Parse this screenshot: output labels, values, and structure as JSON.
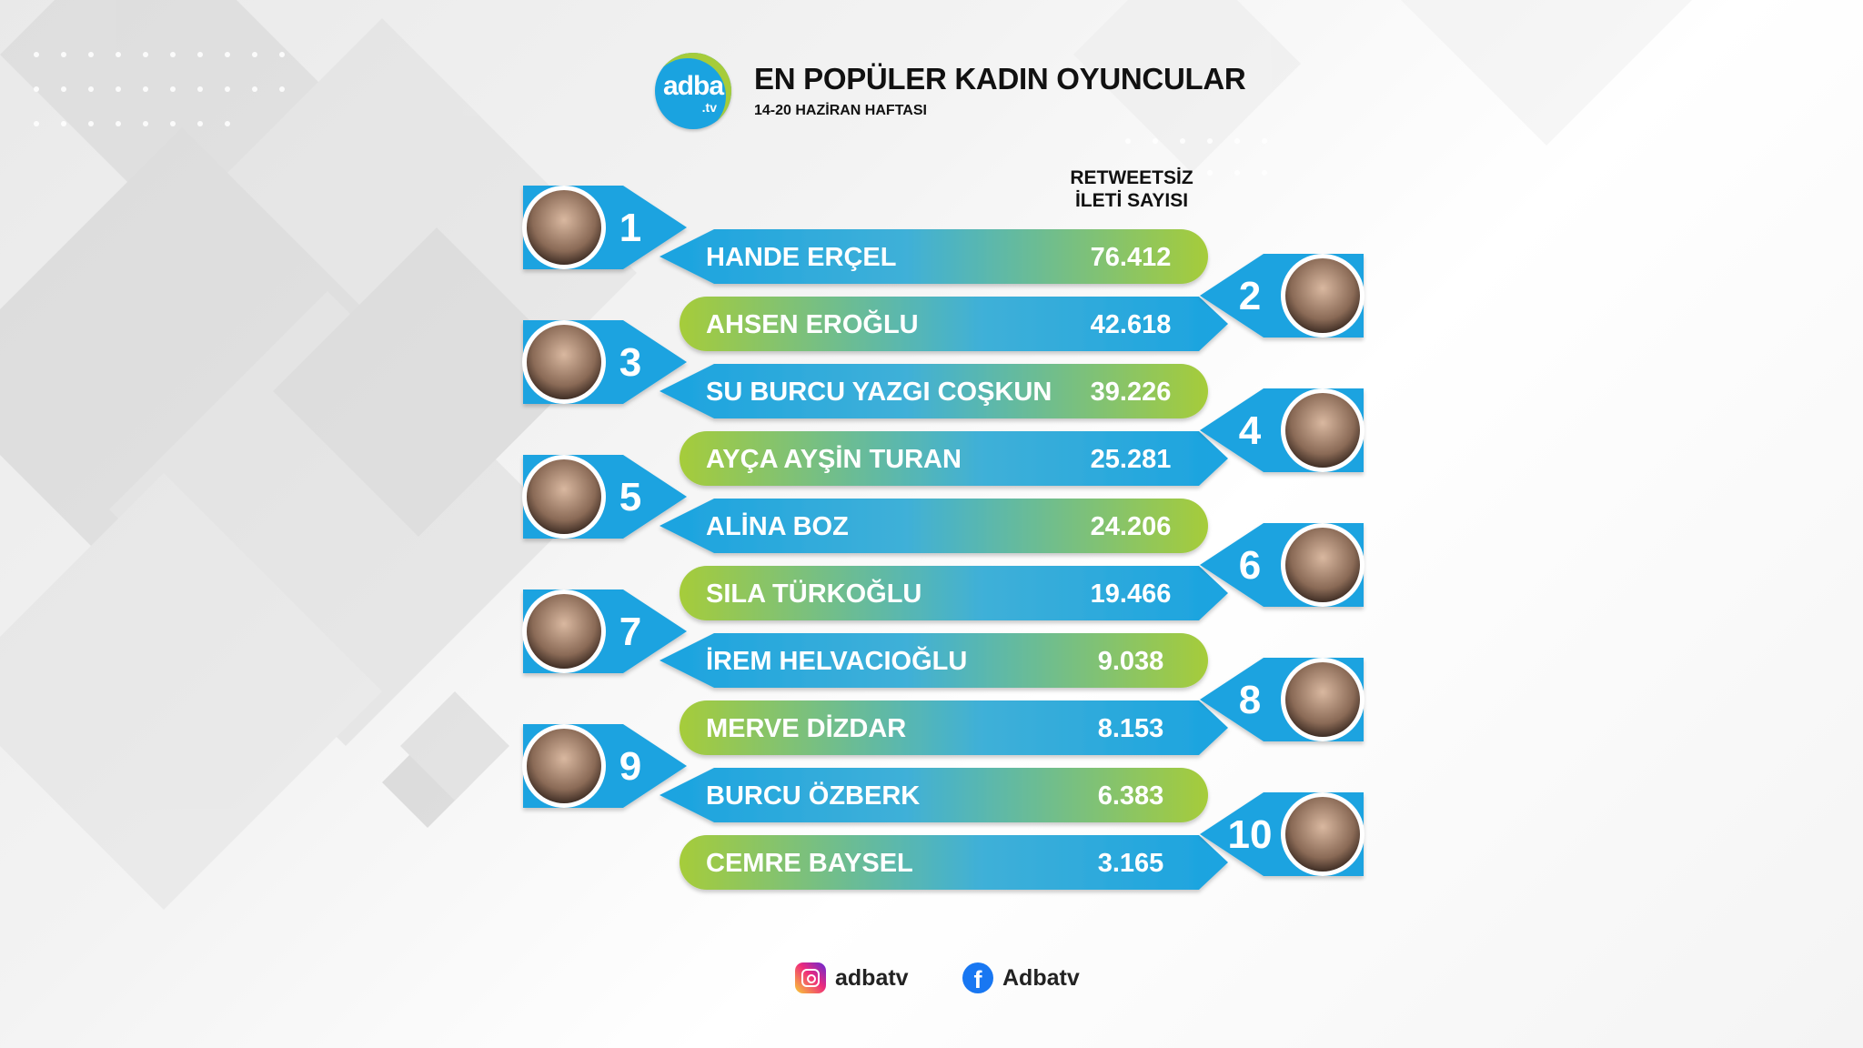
{
  "logo": {
    "main": "adba",
    "suffix": ".tv"
  },
  "header": {
    "title": "EN POPÜLER KADIN OYUNCULAR",
    "subtitle": "14-20 HAZİRAN HAFTASI"
  },
  "column_header": {
    "line1": "RETWEETSİZ",
    "line2": "İLETİ SAYISI"
  },
  "colors": {
    "blue": "#1aa3e0",
    "green": "#a6cc3a",
    "accent_dark": "#0f84c4"
  },
  "chart_data": {
    "type": "table",
    "title": "EN POPÜLER KADIN OYUNCULAR",
    "subtitle": "14-20 HAZİRAN HAFTASI",
    "columns": [
      "RETWEETSİZ İLETİ SAYISI"
    ],
    "rows": [
      {
        "rank": "1",
        "name": "HANDE ERÇEL",
        "value": "76.412"
      },
      {
        "rank": "2",
        "name": "AHSEN EROĞLU",
        "value": "42.618"
      },
      {
        "rank": "3",
        "name": "SU BURCU YAZGI COŞKUN",
        "value": "39.226"
      },
      {
        "rank": "4",
        "name": "AYÇA AYŞİN TURAN",
        "value": "25.281"
      },
      {
        "rank": "5",
        "name": "ALİNA BOZ",
        "value": "24.206"
      },
      {
        "rank": "6",
        "name": "SILA TÜRKOĞLU",
        "value": "19.466"
      },
      {
        "rank": "7",
        "name": "İREM HELVACIOĞLU",
        "value": "9.038"
      },
      {
        "rank": "8",
        "name": "MERVE DİZDAR",
        "value": "8.153"
      },
      {
        "rank": "9",
        "name": "BURCU ÖZBERK",
        "value": "6.383"
      },
      {
        "rank": "10",
        "name": "CEMRE BAYSEL",
        "value": "3.165"
      }
    ]
  },
  "footer": {
    "instagram": "adbatv",
    "facebook": "Adbatv",
    "facebook_glyph": "f"
  }
}
